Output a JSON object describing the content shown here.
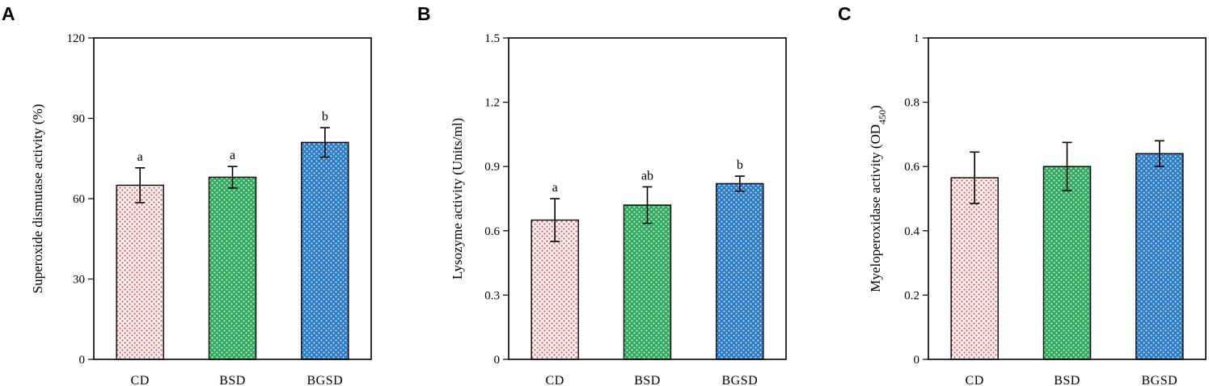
{
  "chart_data": [
    {
      "type": "bar",
      "panel": "A",
      "categories": [
        "CD",
        "BSD",
        "BGSD"
      ],
      "values": [
        65,
        68,
        81
      ],
      "errors": [
        6.5,
        4,
        5.5
      ],
      "significance": [
        "a",
        "a",
        "b"
      ],
      "ylabel": "Superoxide dismutase activity (%)",
      "ylabel_sub": "",
      "ylabel_suffix": "",
      "ylim": [
        0,
        120
      ],
      "yticks": [
        0,
        30,
        60,
        90,
        120
      ],
      "ytick_labels": [
        "0",
        "30",
        "60",
        "90",
        "120"
      ]
    },
    {
      "type": "bar",
      "panel": "B",
      "categories": [
        "CD",
        "BSD",
        "BGSD"
      ],
      "values": [
        0.65,
        0.72,
        0.82
      ],
      "errors": [
        0.1,
        0.085,
        0.035
      ],
      "significance": [
        "a",
        "ab",
        "b"
      ],
      "ylabel": "Lysozyme  activity (Units/ml)",
      "ylabel_sub": "",
      "ylabel_suffix": "",
      "ylim": [
        0,
        1.5
      ],
      "yticks": [
        0,
        0.3,
        0.6,
        0.9,
        1.2,
        1.5
      ],
      "ytick_labels": [
        "0",
        "0.3",
        "0.6",
        "0.9",
        "1.2",
        "1.5"
      ]
    },
    {
      "type": "bar",
      "panel": "C",
      "categories": [
        "CD",
        "BSD",
        "BGSD"
      ],
      "values": [
        0.565,
        0.6,
        0.64
      ],
      "errors": [
        0.08,
        0.075,
        0.04
      ],
      "significance": [
        "",
        "",
        ""
      ],
      "ylabel": "Myeloperoxidase activity (OD",
      "ylabel_sub": "450",
      "ylabel_suffix": ")",
      "ylim": [
        0,
        1
      ],
      "yticks": [
        0,
        0.2,
        0.4,
        0.6,
        0.8,
        1
      ],
      "ytick_labels": [
        "0",
        "0.2",
        "0.4",
        "0.6",
        "0.8",
        "1"
      ]
    }
  ],
  "colors": {
    "CD": "#e8474f",
    "BSD": "#2eaa5e",
    "BGSD": "#2a7cc7"
  }
}
